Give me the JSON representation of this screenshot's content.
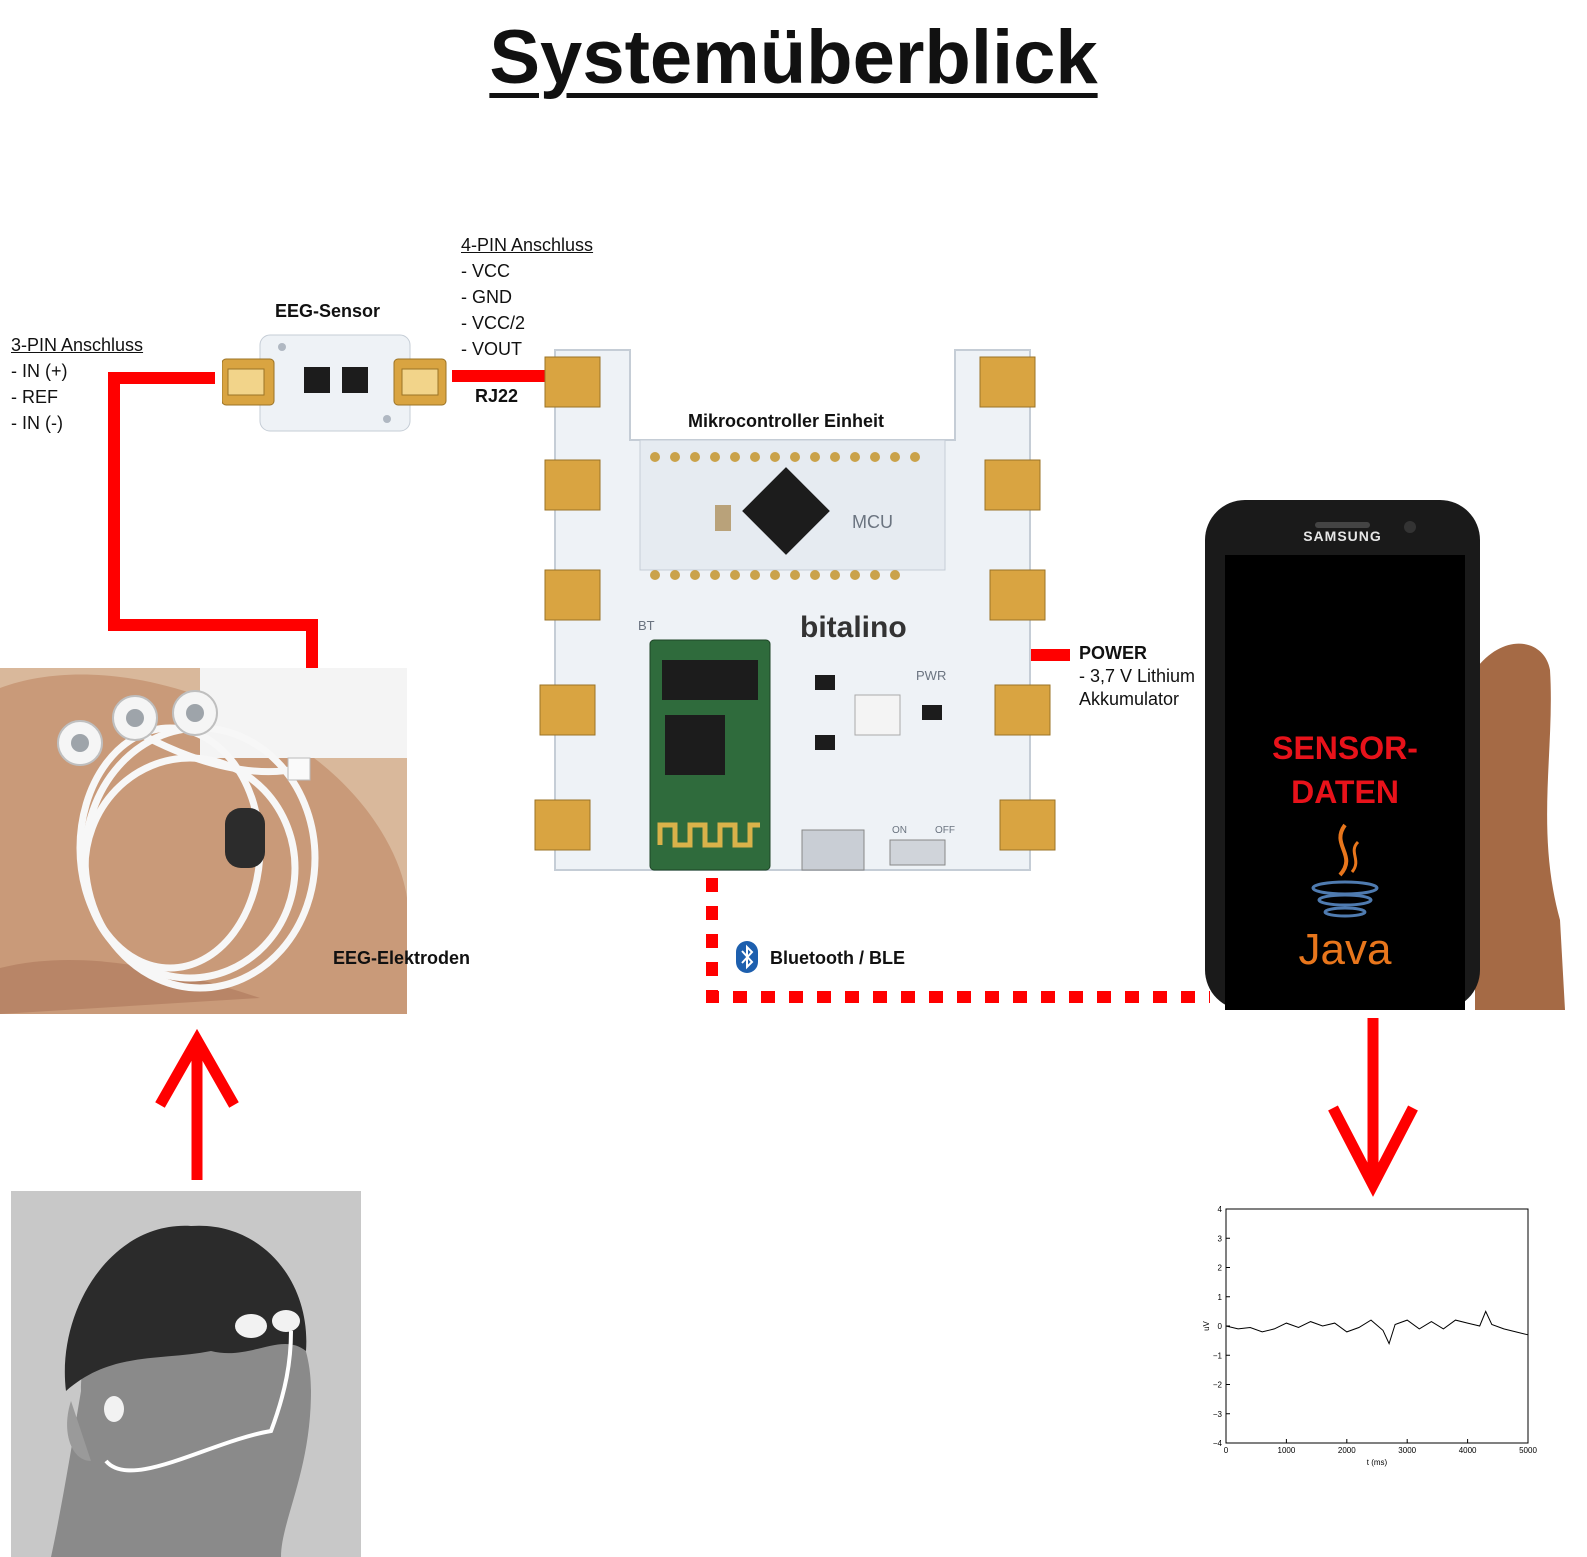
{
  "title": "Systemüberblick",
  "eeg_sensor": {
    "label": "EEG-Sensor",
    "pin3": {
      "heading": "3-PIN Anschluss",
      "pins": [
        "- IN (+)",
        "- REF",
        "- IN (-)"
      ]
    },
    "pin4": {
      "heading": "4-PIN Anschluss",
      "pins": [
        "- VCC",
        "- GND",
        "- VCC/2",
        "- VOUT"
      ]
    },
    "connector": "RJ22"
  },
  "mcu": {
    "label": "Mikrocontroller Einheit",
    "board_text": {
      "mcu": "MCU",
      "brand": "bitalino",
      "bt": "BT",
      "pwr": "PWR",
      "on": "ON",
      "off": "OFF"
    }
  },
  "power": {
    "heading": "POWER",
    "line1": "- 3,7 V Lithium",
    "line2": "Akkumulator"
  },
  "electrodes": {
    "label": "EEG-Elektroden"
  },
  "bluetooth": {
    "label": "Bluetooth / BLE"
  },
  "phone": {
    "brand": "SAMSUNG",
    "screen_line1": "SENSOR-",
    "screen_line2": "DATEN",
    "java": "Java"
  },
  "colors": {
    "connection": "#ff0000",
    "screen_text": "#e8121a",
    "java_orange": "#e8761c",
    "java_blue": "#4f7bb0"
  },
  "chart_data": {
    "type": "line",
    "xlabel": "t (ms)",
    "ylabel": "uV",
    "xlim": [
      0,
      5000
    ],
    "ylim": [
      -4,
      4
    ],
    "xticks": [
      0,
      1000,
      2000,
      3000,
      4000,
      5000
    ],
    "yticks": [
      -4,
      -3,
      -2,
      -1,
      0,
      1,
      2,
      3,
      4
    ],
    "series": [
      {
        "x": [
          0,
          200,
          400,
          600,
          800,
          1000,
          1200,
          1400,
          1600,
          1800,
          2000,
          2200,
          2400,
          2600,
          2700,
          2800,
          3000,
          3200,
          3400,
          3600,
          3800,
          4000,
          4200,
          4300,
          4400,
          4600,
          4800,
          5000
        ],
        "y": [
          0.0,
          -0.1,
          -0.05,
          -0.2,
          -0.1,
          0.1,
          -0.05,
          0.15,
          0.0,
          0.1,
          -0.2,
          -0.05,
          0.2,
          -0.15,
          -0.6,
          0.05,
          0.2,
          -0.1,
          0.15,
          -0.1,
          0.2,
          0.1,
          0.0,
          0.5,
          0.05,
          -0.1,
          -0.2,
          -0.3
        ]
      }
    ]
  }
}
